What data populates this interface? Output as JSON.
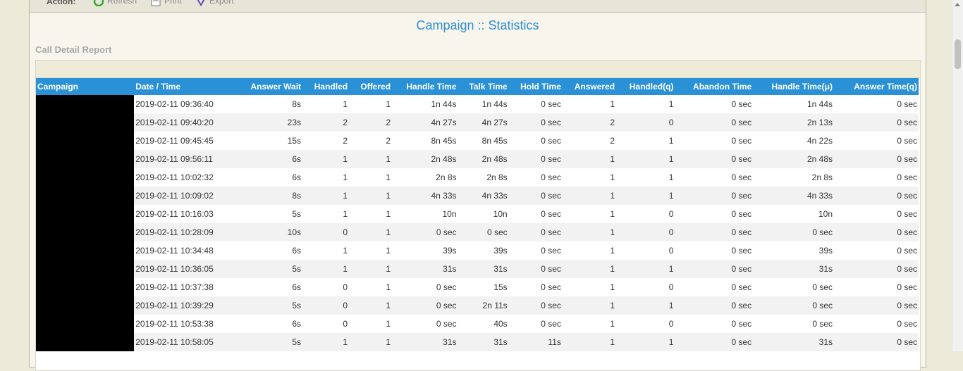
{
  "action_bar": {
    "label": "Action:",
    "refresh_label": "Refresh",
    "print_label": "Print",
    "export_label": "Export"
  },
  "page_title": "Campaign :: Statistics",
  "report_title": "Call Detail Report",
  "colors": {
    "header_bg": "#2b91d6",
    "title": "#2f8fd0"
  },
  "table": {
    "columns": [
      "Campaign",
      "Date / Time",
      "Answer Wait",
      "Handled",
      "Offered",
      "Handle Time",
      "Talk Time",
      "Hold Time",
      "Answered",
      "Handled(q)",
      "Abandon Time",
      "Handle Time(μ)",
      "Answer Time(q)"
    ],
    "rows": [
      [
        "",
        "2019-02-11 09:36:40",
        "8s",
        "1",
        "1",
        "1n 44s",
        "1n 44s",
        "0 sec",
        "1",
        "1",
        "0 sec",
        "1n 44s",
        "0 sec"
      ],
      [
        "",
        "2019-02-11 09:40:20",
        "23s",
        "2",
        "2",
        "4n 27s",
        "4n 27s",
        "0 sec",
        "2",
        "0",
        "0 sec",
        "2n 13s",
        "0 sec"
      ],
      [
        "",
        "2019-02-11 09:45:45",
        "15s",
        "2",
        "2",
        "8n 45s",
        "8n 45s",
        "0 sec",
        "2",
        "1",
        "0 sec",
        "4n 22s",
        "0 sec"
      ],
      [
        "",
        "2019-02-11 09:56:11",
        "6s",
        "1",
        "1",
        "2n 48s",
        "2n 48s",
        "0 sec",
        "1",
        "1",
        "0 sec",
        "2n 48s",
        "0 sec"
      ],
      [
        "",
        "2019-02-11 10:02:32",
        "6s",
        "1",
        "1",
        "2n 8s",
        "2n 8s",
        "0 sec",
        "1",
        "1",
        "0 sec",
        "2n 8s",
        "0 sec"
      ],
      [
        "",
        "2019-02-11 10:09:02",
        "8s",
        "1",
        "1",
        "4n 33s",
        "4n 33s",
        "0 sec",
        "1",
        "1",
        "0 sec",
        "4n 33s",
        "0 sec"
      ],
      [
        "",
        "2019-02-11 10:16:03",
        "5s",
        "1",
        "1",
        "10n",
        "10n",
        "0 sec",
        "1",
        "0",
        "0 sec",
        "10n",
        "0 sec"
      ],
      [
        "",
        "2019-02-11 10:28:09",
        "10s",
        "0",
        "1",
        "0 sec",
        "0 sec",
        "0 sec",
        "1",
        "0",
        "0 sec",
        "0 sec",
        "0 sec"
      ],
      [
        "",
        "2019-02-11 10:34:48",
        "6s",
        "1",
        "1",
        "39s",
        "39s",
        "0 sec",
        "1",
        "0",
        "0 sec",
        "39s",
        "0 sec"
      ],
      [
        "",
        "2019-02-11 10:36:05",
        "5s",
        "1",
        "1",
        "31s",
        "31s",
        "0 sec",
        "1",
        "1",
        "0 sec",
        "31s",
        "0 sec"
      ],
      [
        "",
        "2019-02-11 10:37:38",
        "6s",
        "0",
        "1",
        "0 sec",
        "15s",
        "0 sec",
        "1",
        "0",
        "0 sec",
        "0 sec",
        "0 sec"
      ],
      [
        "",
        "2019-02-11 10:39:29",
        "5s",
        "0",
        "1",
        "0 sec",
        "2n 11s",
        "0 sec",
        "1",
        "1",
        "0 sec",
        "0 sec",
        "0 sec"
      ],
      [
        "",
        "2019-02-11 10:53:38",
        "6s",
        "0",
        "1",
        "0 sec",
        "40s",
        "0 sec",
        "1",
        "0",
        "0 sec",
        "0 sec",
        "0 sec"
      ],
      [
        "",
        "2019-02-11 10:58:05",
        "5s",
        "1",
        "1",
        "31s",
        "31s",
        "11s",
        "1",
        "1",
        "0 sec",
        "31s",
        "0 sec"
      ]
    ]
  }
}
